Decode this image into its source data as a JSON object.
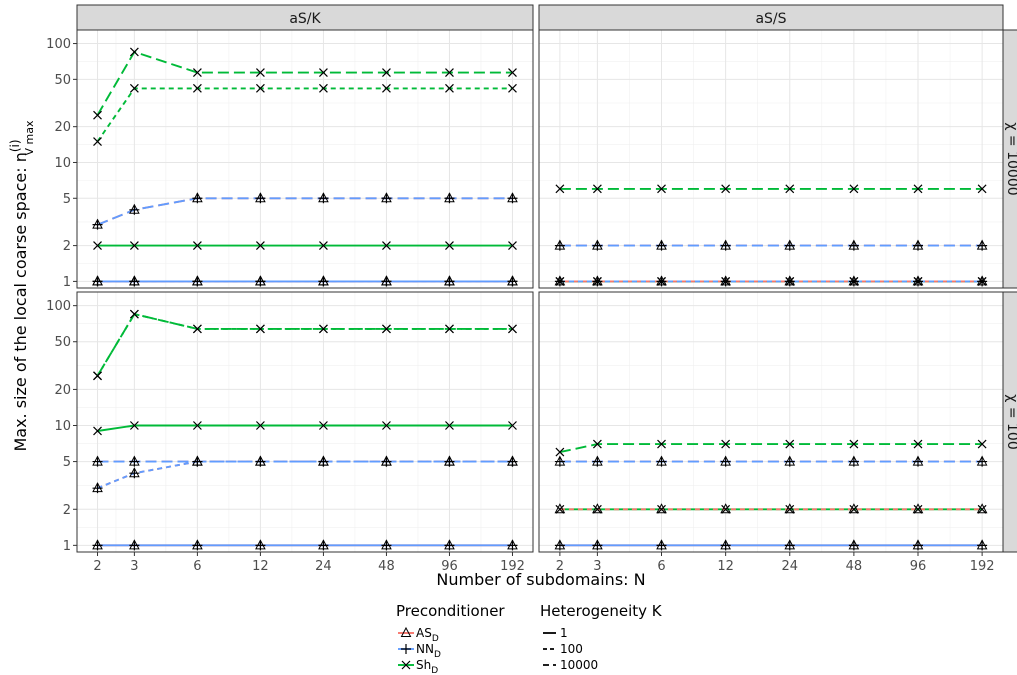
{
  "chart_data": {
    "type": "line",
    "xlabel": "Number of subdomains: N",
    "ylabel": "Max. size of the local coarse space: n",
    "ylabel_sup": "(i)",
    "ylabel_sub": "V max",
    "x_ticks": [
      2,
      3,
      6,
      12,
      24,
      48,
      96,
      192
    ],
    "y_scale": "log",
    "y_ticks": [
      1,
      2,
      5,
      10,
      20,
      50,
      100
    ],
    "ylim": [
      0.88,
      130
    ],
    "grid": true,
    "legend": {
      "placement": "bottom",
      "preconditioner_title": "Preconditioner",
      "preconditioner_items": [
        {
          "label": "AS",
          "sub": "D",
          "marker": "triangle"
        },
        {
          "label": "NN",
          "sub": "D",
          "marker": "plus"
        },
        {
          "label": "Sh",
          "sub": "D",
          "marker": "cross"
        }
      ],
      "heterogeneity_title": "Heterogeneity K",
      "heterogeneity_items": [
        {
          "label": "1",
          "dash": "solid"
        },
        {
          "label": "100",
          "dash": "dashed"
        },
        {
          "label": "10000",
          "dash": "longdash"
        }
      ]
    },
    "colors": {
      "AS": "#F8766D",
      "NN": "#619CFF",
      "Sh": "#00BA38"
    },
    "panels": [
      {
        "column": "aS/K",
        "row": "χ = 10000",
        "series": [
          {
            "precond": "Sh",
            "K": "10000",
            "values": [
              25,
              85,
              57,
              57,
              57,
              57,
              57,
              57
            ]
          },
          {
            "precond": "Sh",
            "K": "100",
            "values": [
              15,
              42,
              42,
              42,
              42,
              42,
              42,
              42
            ]
          },
          {
            "precond": "AS",
            "K": "10000",
            "values": [
              3,
              4,
              5,
              5,
              5,
              5,
              5,
              5
            ]
          },
          {
            "precond": "NN",
            "K": "10000",
            "values": [
              3,
              4,
              5,
              5,
              5,
              5,
              5,
              5
            ]
          },
          {
            "precond": "Sh",
            "K": "1",
            "values": [
              2,
              2,
              2,
              2,
              2,
              2,
              2,
              2
            ]
          },
          {
            "precond": "AS",
            "K": "1",
            "values": [
              1,
              1,
              1,
              1,
              1,
              1,
              1,
              1
            ]
          },
          {
            "precond": "AS",
            "K": "100",
            "values": [
              1,
              1,
              1,
              1,
              1,
              1,
              1,
              1
            ]
          },
          {
            "precond": "NN",
            "K": "1",
            "values": [
              1,
              1,
              1,
              1,
              1,
              1,
              1,
              1
            ]
          },
          {
            "precond": "NN",
            "K": "100",
            "values": [
              1,
              1,
              1,
              1,
              1,
              1,
              1,
              1
            ]
          }
        ]
      },
      {
        "column": "aS/S",
        "row": "χ = 10000",
        "series": [
          {
            "precond": "Sh",
            "K": "10000",
            "values": [
              6,
              6,
              6,
              6,
              6,
              6,
              6,
              6
            ]
          },
          {
            "precond": "AS",
            "K": "10000",
            "values": [
              2,
              2,
              2,
              2,
              2,
              2,
              2,
              2
            ]
          },
          {
            "precond": "NN",
            "K": "10000",
            "values": [
              2,
              2,
              2,
              2,
              2,
              2,
              2,
              2
            ]
          },
          {
            "precond": "Sh",
            "K": "1",
            "values": [
              1,
              1,
              1,
              1,
              1,
              1,
              1,
              1
            ]
          },
          {
            "precond": "Sh",
            "K": "100",
            "values": [
              1,
              1,
              1,
              1,
              1,
              1,
              1,
              1
            ]
          },
          {
            "precond": "AS",
            "K": "1",
            "values": [
              1,
              1,
              1,
              1,
              1,
              1,
              1,
              1
            ]
          },
          {
            "precond": "NN",
            "K": "100",
            "values": [
              1,
              1,
              1,
              1,
              1,
              1,
              1,
              1
            ]
          }
        ]
      },
      {
        "column": "aS/K",
        "row": "χ = 100",
        "series": [
          {
            "precond": "Sh",
            "K": "10000",
            "values": [
              26,
              85,
              64,
              64,
              64,
              64,
              64,
              64
            ]
          },
          {
            "precond": "Sh",
            "K": "100",
            "values": [
              26,
              85,
              64,
              64,
              64,
              64,
              64,
              64
            ]
          },
          {
            "precond": "Sh",
            "K": "1",
            "values": [
              9,
              10,
              10,
              10,
              10,
              10,
              10,
              10
            ]
          },
          {
            "precond": "AS",
            "K": "10000",
            "values": [
              5,
              5,
              5,
              5,
              5,
              5,
              5,
              5
            ]
          },
          {
            "precond": "NN",
            "K": "10000",
            "values": [
              5,
              5,
              5,
              5,
              5,
              5,
              5,
              5
            ]
          },
          {
            "precond": "AS",
            "K": "100",
            "values": [
              3,
              4,
              5,
              5,
              5,
              5,
              5,
              5
            ]
          },
          {
            "precond": "NN",
            "K": "100",
            "values": [
              3,
              4,
              5,
              5,
              5,
              5,
              5,
              5
            ]
          },
          {
            "precond": "AS",
            "K": "1",
            "values": [
              1,
              1,
              1,
              1,
              1,
              1,
              1,
              1
            ]
          },
          {
            "precond": "NN",
            "K": "1",
            "values": [
              1,
              1,
              1,
              1,
              1,
              1,
              1,
              1
            ]
          }
        ]
      },
      {
        "column": "aS/S",
        "row": "χ = 100",
        "series": [
          {
            "precond": "Sh",
            "K": "10000",
            "values": [
              6,
              7,
              7,
              7,
              7,
              7,
              7,
              7
            ]
          },
          {
            "precond": "AS",
            "K": "10000",
            "values": [
              5,
              5,
              5,
              5,
              5,
              5,
              5,
              5
            ]
          },
          {
            "precond": "NN",
            "K": "10000",
            "values": [
              5,
              5,
              5,
              5,
              5,
              5,
              5,
              5
            ]
          },
          {
            "precond": "Sh",
            "K": "1",
            "values": [
              2,
              2,
              2,
              2,
              2,
              2,
              2,
              2
            ]
          },
          {
            "precond": "AS",
            "K": "100",
            "values": [
              2,
              2,
              2,
              2,
              2,
              2,
              2,
              2
            ]
          },
          {
            "precond": "AS",
            "K": "1",
            "values": [
              1,
              1,
              1,
              1,
              1,
              1,
              1,
              1
            ]
          },
          {
            "precond": "NN",
            "K": "1",
            "values": [
              1,
              1,
              1,
              1,
              1,
              1,
              1,
              1
            ]
          }
        ]
      }
    ]
  }
}
